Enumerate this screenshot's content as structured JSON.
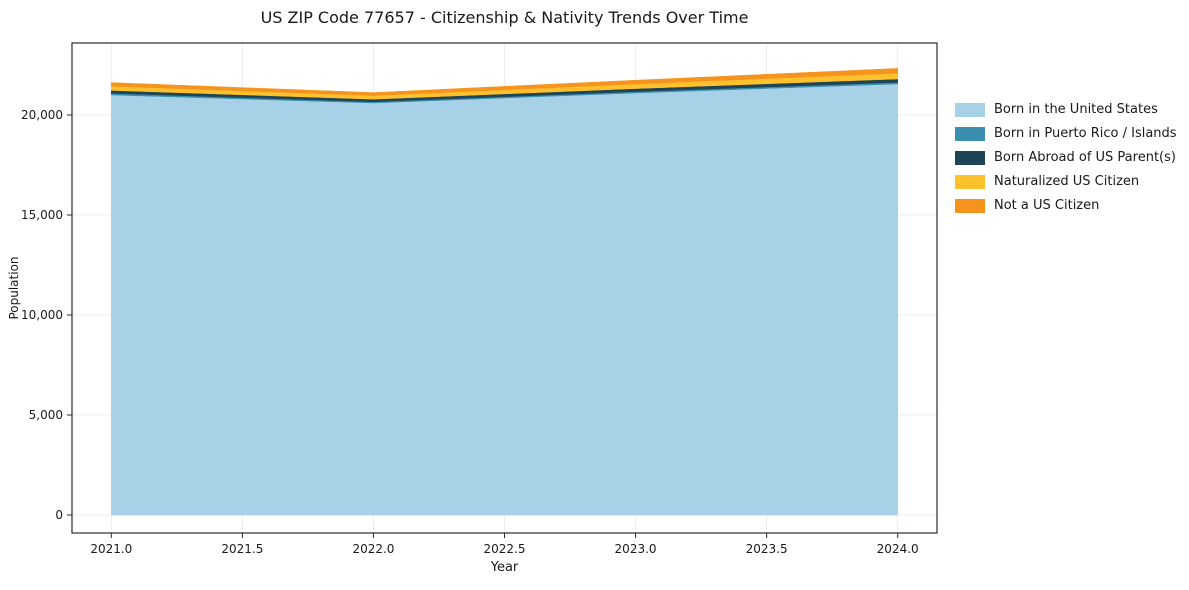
{
  "chart_data": {
    "type": "area",
    "stacked": true,
    "title": "US ZIP Code 77657 - Citizenship & Nativity Trends Over Time",
    "xlabel": "Year",
    "ylabel": "Population",
    "x": [
      2021,
      2022,
      2023,
      2024
    ],
    "series": [
      {
        "name": "Born in the United States",
        "color": "#a6d1e6",
        "values": [
          21000,
          20600,
          21100,
          21550
        ]
      },
      {
        "name": "Born in Puerto Rico / Islands",
        "color": "#3b8fae",
        "values": [
          80,
          60,
          70,
          80
        ]
      },
      {
        "name": "Born Abroad of US Parent(s)",
        "color": "#1f4455",
        "values": [
          150,
          130,
          150,
          170
        ]
      },
      {
        "name": "Naturalized US Citizen",
        "color": "#fdc12e",
        "values": [
          210,
          180,
          230,
          290
        ]
      },
      {
        "name": "Not a US Citizen",
        "color": "#f6931d",
        "values": [
          180,
          150,
          190,
          240
        ]
      }
    ],
    "xlim": [
      2020.85,
      2024.15
    ],
    "ylim": [
      -900,
      23600
    ],
    "xticks": [
      2021.0,
      2021.5,
      2022.0,
      2022.5,
      2023.0,
      2023.5,
      2024.0
    ],
    "xtick_labels": [
      "2021.0",
      "2021.5",
      "2022.0",
      "2022.5",
      "2023.0",
      "2023.5",
      "2024.0"
    ],
    "yticks": [
      0,
      5000,
      10000,
      15000,
      20000
    ],
    "ytick_labels": [
      "0",
      "5,000",
      "10,000",
      "15,000",
      "20,000"
    ],
    "grid": true,
    "grid_color": "#ececec",
    "spine_color": "#2b2b2b",
    "tick_text_color": "#1a1a1a",
    "legend_position": "right-outside"
  }
}
